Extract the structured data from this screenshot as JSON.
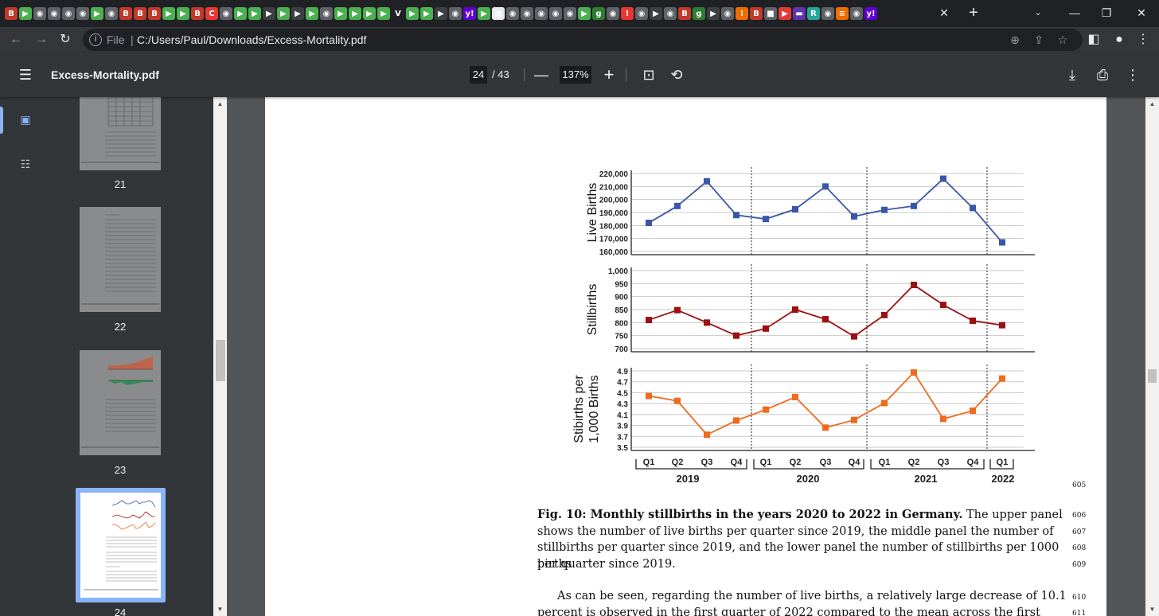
{
  "browser": {
    "tab_icons": [
      {
        "icon": "bi-icon",
        "color": "#c0392b",
        "glyph": "B"
      },
      {
        "icon": "play-icon",
        "color": "#4caf50",
        "glyph": "▶"
      },
      {
        "icon": "globe-icon",
        "color": "#5f6368",
        "glyph": "◉"
      },
      {
        "icon": "globe-icon",
        "color": "#5f6368",
        "glyph": "◉"
      },
      {
        "icon": "globe-icon",
        "color": "#5f6368",
        "glyph": "◉"
      },
      {
        "icon": "globe-icon",
        "color": "#5f6368",
        "glyph": "◉"
      },
      {
        "icon": "play-icon",
        "color": "#4caf50",
        "glyph": "▶"
      },
      {
        "icon": "globe-icon",
        "color": "#5f6368",
        "glyph": "◉"
      },
      {
        "icon": "bi-icon",
        "color": "#c0392b",
        "glyph": "B"
      },
      {
        "icon": "bi-icon",
        "color": "#c0392b",
        "glyph": "B"
      },
      {
        "icon": "bi-icon",
        "color": "#c0392b",
        "glyph": "B"
      },
      {
        "icon": "play-icon",
        "color": "#4caf50",
        "glyph": "▶"
      },
      {
        "icon": "play-icon",
        "color": "#4caf50",
        "glyph": "▶"
      },
      {
        "icon": "bi-icon",
        "color": "#c0392b",
        "glyph": "B"
      },
      {
        "icon": "ring-icon",
        "color": "#e53935",
        "glyph": "C"
      },
      {
        "icon": "globe-icon",
        "color": "#5f6368",
        "glyph": "◉"
      },
      {
        "icon": "play-icon",
        "color": "#4caf50",
        "glyph": "▶"
      },
      {
        "icon": "play-icon",
        "color": "#4caf50",
        "glyph": "▶"
      },
      {
        "icon": "play-icon",
        "color": "#3c4043",
        "glyph": "▶"
      },
      {
        "icon": "play-icon",
        "color": "#4caf50",
        "glyph": "▶"
      },
      {
        "icon": "play-icon",
        "color": "#3c4043",
        "glyph": "▶"
      },
      {
        "icon": "play-icon",
        "color": "#4caf50",
        "glyph": "▶"
      },
      {
        "icon": "globe-icon",
        "color": "#5f6368",
        "glyph": "◉"
      },
      {
        "icon": "play-icon",
        "color": "#4caf50",
        "glyph": "▶"
      },
      {
        "icon": "play-icon",
        "color": "#4caf50",
        "glyph": "▶"
      },
      {
        "icon": "play-icon",
        "color": "#4caf50",
        "glyph": "▶"
      },
      {
        "icon": "play-icon",
        "color": "#4caf50",
        "glyph": "▶"
      },
      {
        "icon": "v-icon",
        "color": "#202124",
        "glyph": "V"
      },
      {
        "icon": "play-icon",
        "color": "#4caf50",
        "glyph": "▶"
      },
      {
        "icon": "play-icon",
        "color": "#4caf50",
        "glyph": "▶"
      },
      {
        "icon": "play-icon",
        "color": "#3c4043",
        "glyph": "▶"
      },
      {
        "icon": "globe-icon",
        "color": "#5f6368",
        "glyph": "◉"
      },
      {
        "icon": "yahoo-icon",
        "color": "#6001d2",
        "glyph": "y!"
      },
      {
        "icon": "play-icon",
        "color": "#4caf50",
        "glyph": "▶"
      },
      {
        "icon": "image-icon",
        "color": "#e8eaed",
        "glyph": "▦"
      },
      {
        "icon": "globe-icon",
        "color": "#5f6368",
        "glyph": "◉"
      },
      {
        "icon": "globe-icon",
        "color": "#5f6368",
        "glyph": "◉"
      },
      {
        "icon": "globe-icon",
        "color": "#5f6368",
        "glyph": "◉"
      },
      {
        "icon": "globe-icon",
        "color": "#5f6368",
        "glyph": "◉"
      },
      {
        "icon": "globe-icon",
        "color": "#5f6368",
        "glyph": "◉"
      },
      {
        "icon": "play-icon",
        "color": "#4caf50",
        "glyph": "▶"
      },
      {
        "icon": "g-icon",
        "color": "#2e7d32",
        "glyph": "g"
      },
      {
        "icon": "globe-icon",
        "color": "#5f6368",
        "glyph": "◉"
      },
      {
        "icon": "warning-icon",
        "color": "#e53935",
        "glyph": "!"
      },
      {
        "icon": "globe-icon",
        "color": "#5f6368",
        "glyph": "◉"
      },
      {
        "icon": "play-icon",
        "color": "#3c4043",
        "glyph": "▶"
      },
      {
        "icon": "globe-icon",
        "color": "#5f6368",
        "glyph": "◉"
      },
      {
        "icon": "bi-icon",
        "color": "#c0392b",
        "glyph": "B"
      },
      {
        "icon": "g-icon",
        "color": "#2e7d32",
        "glyph": "g"
      },
      {
        "icon": "play-icon",
        "color": "#3c4043",
        "glyph": "▶"
      },
      {
        "icon": "globe-icon",
        "color": "#5f6368",
        "glyph": "◉"
      },
      {
        "icon": "dots-icon",
        "color": "#ef6c00",
        "glyph": "⁝"
      },
      {
        "icon": "bi-icon",
        "color": "#c0392b",
        "glyph": "B"
      },
      {
        "icon": "folder-icon",
        "color": "#5f6368",
        "glyph": "■"
      },
      {
        "icon": "youtube-icon",
        "color": "#e53935",
        "glyph": "▶"
      },
      {
        "icon": "bookmark-icon",
        "color": "#5e35b1",
        "glyph": "▬"
      },
      {
        "icon": "r-icon",
        "color": "#26a69a",
        "glyph": "R"
      },
      {
        "icon": "globe-icon",
        "color": "#5f6368",
        "glyph": "◉"
      },
      {
        "icon": "layers-icon",
        "color": "#ef6c00",
        "glyph": "≡"
      },
      {
        "icon": "globe-icon",
        "color": "#5f6368",
        "glyph": "◉"
      },
      {
        "icon": "yahoo-icon",
        "color": "#6001d2",
        "glyph": "y!"
      }
    ],
    "address": {
      "scheme": "File",
      "url": "C:/Users/Paul/Downloads/Excess-Mortality.pdf"
    }
  },
  "viewer": {
    "title": "Excess-Mortality.pdf",
    "current_page": "24",
    "total_pages": "/  43",
    "zoom": "137%"
  },
  "thumbnails": [
    {
      "label": "21"
    },
    {
      "label": "22"
    },
    {
      "label": "23"
    },
    {
      "label": "24"
    }
  ],
  "chart_data": [
    {
      "type": "line",
      "ylabel": "Live Births",
      "color": "#3a56a8",
      "categories": [
        "Q1 2019",
        "Q2 2019",
        "Q3 2019",
        "Q4 2019",
        "Q1 2020",
        "Q2 2020",
        "Q3 2020",
        "Q4 2020",
        "Q1 2021",
        "Q2 2021",
        "Q3 2021",
        "Q4 2021",
        "Q1 2022"
      ],
      "values": [
        182000,
        195000,
        214000,
        188000,
        185000,
        192500,
        210000,
        187000,
        192000,
        195000,
        216000,
        193500,
        167000
      ],
      "ylim": [
        160000,
        220000
      ],
      "yticks": [
        "220,000",
        "210,000",
        "200,000",
        "190,000",
        "180,000",
        "170,000",
        "160,000"
      ]
    },
    {
      "type": "line",
      "ylabel": "Stillbirths",
      "color": "#9b1010",
      "categories": [
        "Q1 2019",
        "Q2 2019",
        "Q3 2019",
        "Q4 2019",
        "Q1 2020",
        "Q2 2020",
        "Q3 2020",
        "Q4 2020",
        "Q1 2021",
        "Q2 2021",
        "Q3 2021",
        "Q4 2021",
        "Q1 2022"
      ],
      "values": [
        810,
        848,
        800,
        750,
        777,
        850,
        813,
        747,
        829,
        945,
        868,
        807,
        790
      ],
      "ylim": [
        700,
        1000
      ],
      "yticks": [
        "1,000",
        "950",
        "900",
        "850",
        "800",
        "750",
        "700"
      ]
    },
    {
      "type": "line",
      "ylabel": "Stibirths per 1,000 Births",
      "color": "#f06a1e",
      "categories": [
        "Q1 2019",
        "Q2 2019",
        "Q3 2019",
        "Q4 2019",
        "Q1 2020",
        "Q2 2020",
        "Q3 2020",
        "Q4 2020",
        "Q1 2021",
        "Q2 2021",
        "Q3 2021",
        "Q4 2021",
        "Q1 2022"
      ],
      "values": [
        4.44,
        4.35,
        3.73,
        3.99,
        4.19,
        4.42,
        3.86,
        4.0,
        4.31,
        4.87,
        4.02,
        4.17,
        4.76
      ],
      "ylim": [
        3.5,
        4.9
      ],
      "yticks": [
        "4.9",
        "4.7",
        "4.5",
        "4.3",
        "4.1",
        "3.9",
        "3.7",
        "3.5"
      ]
    }
  ],
  "xaxis": {
    "quarters": [
      "Q1",
      "Q2",
      "Q3",
      "Q4",
      "Q1",
      "Q2",
      "Q3",
      "Q4",
      "Q1",
      "Q2",
      "Q3",
      "Q4",
      "Q1"
    ],
    "years": [
      "2019",
      "2020",
      "2021",
      "2022"
    ]
  },
  "caption": {
    "bold": "Fig. 10: Monthly stillbirths in the years 2020 to 2022 in Germany.",
    "lines": [
      " The upper panel",
      "shows the number of live births per quarter since 2019, the middle panel the number of",
      "stillbirths per quarter since 2019, and the lower panel the number of stillbirths per 1000 births",
      "per quarter since 2019."
    ],
    "para2": [
      "As can be seen, regarding the number of live births, a relatively large decrease of 10.1",
      "percent is observed in the first quarter of 2022 compared to the mean across the first"
    ],
    "line_numbers": [
      "605",
      "606",
      "607",
      "608",
      "609",
      "610",
      "611"
    ]
  }
}
